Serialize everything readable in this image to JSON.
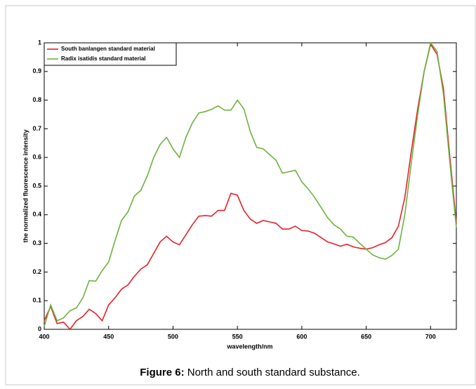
{
  "chart_data": {
    "type": "line",
    "xlabel": "wavelength/nm",
    "ylabel": "the normalized fluorescence intensity",
    "caption_label": "Figure 6:",
    "caption_text": "North and south standard substance.",
    "legend": "upper left",
    "xlim": [
      400,
      720
    ],
    "xticks": [
      400,
      450,
      500,
      550,
      600,
      650,
      700
    ],
    "ylim": [
      0,
      1
    ],
    "yticks": [
      0,
      0.1,
      0.2,
      0.3,
      0.4,
      0.5,
      0.6,
      0.7,
      0.8,
      0.9,
      1
    ],
    "x": [
      400,
      405,
      410,
      415,
      420,
      425,
      430,
      435,
      440,
      445,
      450,
      455,
      460,
      465,
      470,
      475,
      480,
      485,
      490,
      495,
      500,
      505,
      510,
      515,
      520,
      525,
      530,
      535,
      540,
      545,
      550,
      555,
      560,
      565,
      570,
      575,
      580,
      585,
      590,
      595,
      600,
      605,
      610,
      615,
      620,
      625,
      630,
      635,
      640,
      645,
      650,
      655,
      660,
      665,
      670,
      675,
      680,
      685,
      690,
      695,
      700,
      705,
      710,
      715,
      720
    ],
    "series": [
      {
        "name": "South banlangen standard material",
        "color": "#e8202a",
        "values": [
          0.03,
          0.08,
          0.02,
          0.025,
          0.0,
          0.03,
          0.045,
          0.07,
          0.055,
          0.03,
          0.085,
          0.11,
          0.14,
          0.155,
          0.185,
          0.21,
          0.225,
          0.265,
          0.305,
          0.325,
          0.305,
          0.295,
          0.33,
          0.365,
          0.395,
          0.397,
          0.395,
          0.415,
          0.415,
          0.475,
          0.468,
          0.415,
          0.385,
          0.37,
          0.38,
          0.375,
          0.37,
          0.35,
          0.35,
          0.36,
          0.345,
          0.343,
          0.335,
          0.32,
          0.305,
          0.298,
          0.29,
          0.297,
          0.288,
          0.283,
          0.28,
          0.285,
          0.295,
          0.303,
          0.32,
          0.36,
          0.46,
          0.62,
          0.77,
          0.9,
          0.995,
          0.96,
          0.84,
          0.6,
          0.37
        ]
      },
      {
        "name": "Radix isatidis standard material",
        "color": "#6cb33f",
        "values": [
          0.01,
          0.085,
          0.03,
          0.04,
          0.065,
          0.075,
          0.11,
          0.17,
          0.168,
          0.205,
          0.235,
          0.31,
          0.38,
          0.41,
          0.465,
          0.485,
          0.535,
          0.6,
          0.645,
          0.67,
          0.63,
          0.6,
          0.67,
          0.72,
          0.755,
          0.76,
          0.768,
          0.78,
          0.765,
          0.765,
          0.8,
          0.77,
          0.69,
          0.635,
          0.63,
          0.61,
          0.59,
          0.545,
          0.55,
          0.555,
          0.515,
          0.49,
          0.46,
          0.425,
          0.39,
          0.365,
          0.35,
          0.325,
          0.322,
          0.3,
          0.28,
          0.26,
          0.25,
          0.245,
          0.258,
          0.28,
          0.4,
          0.58,
          0.75,
          0.9,
          1.0,
          0.97,
          0.82,
          0.58,
          0.355
        ]
      }
    ]
  }
}
